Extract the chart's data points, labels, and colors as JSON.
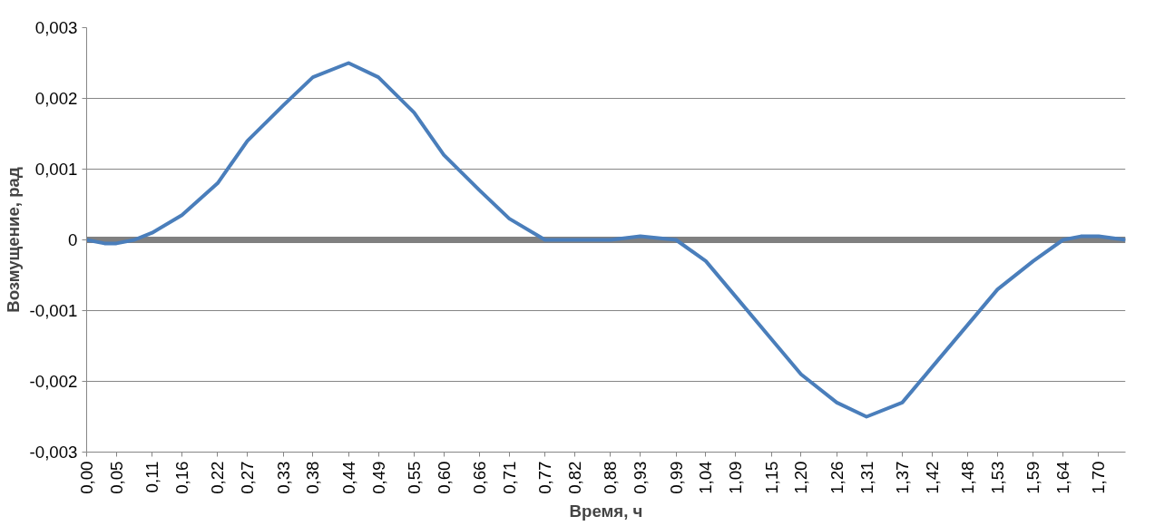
{
  "chart_data": {
    "type": "line",
    "xlabel": "Время, ч",
    "ylabel": "Возмущение, рад",
    "x": [
      0,
      0.03,
      0.05,
      0.08,
      0.11,
      0.16,
      0.22,
      0.27,
      0.33,
      0.38,
      0.44,
      0.49,
      0.55,
      0.6,
      0.66,
      0.71,
      0.77,
      0.82,
      0.88,
      0.93,
      0.99,
      1.04,
      1.09,
      1.15,
      1.2,
      1.26,
      1.31,
      1.37,
      1.42,
      1.48,
      1.53,
      1.59,
      1.64,
      1.67,
      1.7,
      1.745
    ],
    "series": [
      {
        "color": "#4a7ebb",
        "values": [
          0,
          -5e-05,
          -5e-05,
          0,
          0.0001,
          0.00035,
          0.0008,
          0.0014,
          0.0019,
          0.0023,
          0.0025,
          0.0023,
          0.0018,
          0.0012,
          0.0007,
          0.0003,
          0,
          0,
          0,
          5e-05,
          0,
          -0.0003,
          -0.0008,
          -0.0014,
          -0.0019,
          -0.0023,
          -0.0025,
          -0.0023,
          -0.0018,
          -0.0012,
          -0.0007,
          -0.0003,
          0,
          5e-05,
          5e-05,
          0
        ]
      }
    ],
    "xlim": [
      0,
      1.745
    ],
    "ylim": [
      -0.003,
      0.003
    ],
    "xticks": [
      {
        "value": 0,
        "label": "0,00"
      },
      {
        "value": 0.05,
        "label": "0,05"
      },
      {
        "value": 0.11,
        "label": "0,11"
      },
      {
        "value": 0.16,
        "label": "0,16"
      },
      {
        "value": 0.22,
        "label": "0,22"
      },
      {
        "value": 0.27,
        "label": "0,27"
      },
      {
        "value": 0.33,
        "label": "0,33"
      },
      {
        "value": 0.38,
        "label": "0,38"
      },
      {
        "value": 0.44,
        "label": "0,44"
      },
      {
        "value": 0.49,
        "label": "0,49"
      },
      {
        "value": 0.55,
        "label": "0,55"
      },
      {
        "value": 0.6,
        "label": "0,60"
      },
      {
        "value": 0.66,
        "label": "0,66"
      },
      {
        "value": 0.71,
        "label": "0,71"
      },
      {
        "value": 0.77,
        "label": "0,77"
      },
      {
        "value": 0.82,
        "label": "0,82"
      },
      {
        "value": 0.88,
        "label": "0,88"
      },
      {
        "value": 0.93,
        "label": "0,93"
      },
      {
        "value": 0.99,
        "label": "0,99"
      },
      {
        "value": 1.04,
        "label": "1,04"
      },
      {
        "value": 1.09,
        "label": "1,09"
      },
      {
        "value": 1.15,
        "label": "1,15"
      },
      {
        "value": 1.2,
        "label": "1,20"
      },
      {
        "value": 1.26,
        "label": "1,26"
      },
      {
        "value": 1.31,
        "label": "1,31"
      },
      {
        "value": 1.37,
        "label": "1,37"
      },
      {
        "value": 1.42,
        "label": "1,42"
      },
      {
        "value": 1.48,
        "label": "1,48"
      },
      {
        "value": 1.53,
        "label": "1,53"
      },
      {
        "value": 1.59,
        "label": "1,59"
      },
      {
        "value": 1.64,
        "label": "1,64"
      },
      {
        "value": 1.7,
        "label": "1,70"
      }
    ],
    "yticks": [
      {
        "value": -0.003,
        "label": "-0,003"
      },
      {
        "value": -0.002,
        "label": "-0,002"
      },
      {
        "value": -0.001,
        "label": "-0,001"
      },
      0,
      {
        "value": 0.001,
        "label": "0,001"
      },
      {
        "value": 0.002,
        "label": "0,002"
      },
      {
        "value": 0.003,
        "label": "0,003"
      }
    ],
    "ref_lines": [
      {
        "axis": "y",
        "value": 0,
        "color": "#808080"
      }
    ],
    "grid": "y",
    "marker": "none",
    "line_style": "solid"
  }
}
